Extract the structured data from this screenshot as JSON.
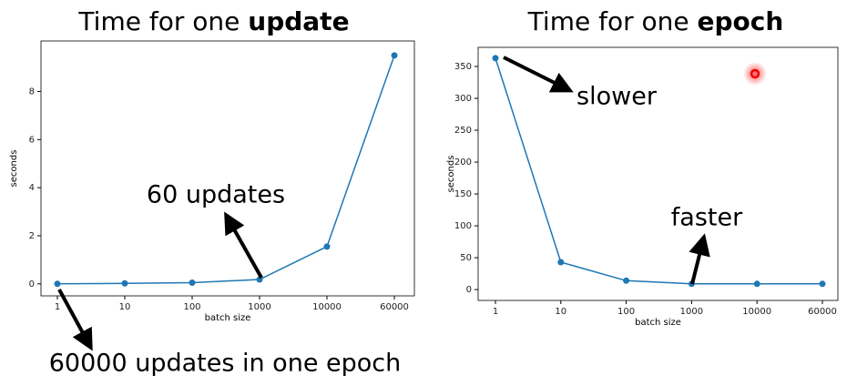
{
  "chart_data": [
    {
      "type": "line",
      "title": "Time for one",
      "title_bold": "update",
      "categories": [
        "1",
        "10",
        "100",
        "1000",
        "10000",
        "60000"
      ],
      "series": [
        {
          "color": "#1f77b4",
          "values": [
            0,
            0.02,
            0.05,
            0.18,
            1.55,
            9.5
          ]
        }
      ],
      "ylim": [
        -0.5,
        10.1
      ],
      "yticks": [
        0,
        2,
        4,
        6,
        8
      ],
      "xlabel": "batch size",
      "ylabel": "seconds",
      "annotations": [
        "60 updates",
        "60000 updates in one epoch"
      ]
    },
    {
      "type": "line",
      "title": "Time for one",
      "title_bold": "epoch",
      "categories": [
        "1",
        "10",
        "100",
        "1000",
        "10000",
        "60000"
      ],
      "series": [
        {
          "color": "#1f77b4",
          "values": [
            363,
            43,
            14,
            9,
            9,
            9
          ]
        }
      ],
      "ylim": [
        -17,
        380
      ],
      "yticks": [
        0,
        50,
        100,
        150,
        200,
        250,
        300,
        350
      ],
      "xlabel": "batch size",
      "ylabel": "seconds",
      "annotations": [
        "slower",
        "faster"
      ]
    }
  ]
}
